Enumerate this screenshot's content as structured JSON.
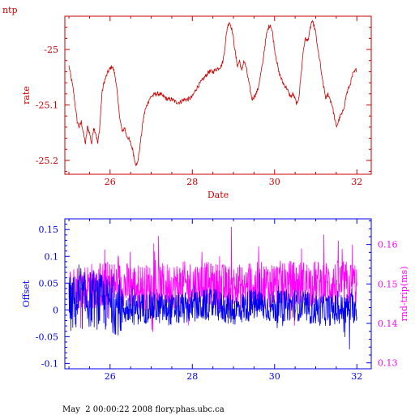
{
  "title": "ntp",
  "footer": "May  2 00:00:22 2008 flory.phas.ubc.ca",
  "colors": {
    "rate": "#cc0000",
    "offset": "#0000ee",
    "rtt": "#ff00ff",
    "text": "#000000"
  },
  "chart_data": [
    {
      "type": "line",
      "ylabel": "rate",
      "xlabel": "Date",
      "xlim": [
        24.9,
        32.35
      ],
      "ylim": [
        -25.225,
        -24.94
      ],
      "xticks": [
        26,
        28,
        30,
        32
      ],
      "yticks": [
        -25,
        -25.1,
        -25.2
      ],
      "ytick_labels": [
        "-25",
        "-25.1",
        "-25.2"
      ],
      "series": [
        {
          "keypoints": [
            [
              25.0,
              -25.03
            ],
            [
              25.05,
              -25.05
            ],
            [
              25.1,
              -25.07
            ],
            [
              25.15,
              -25.1
            ],
            [
              25.2,
              -25.13
            ],
            [
              25.25,
              -25.14
            ],
            [
              25.3,
              -25.13
            ],
            [
              25.35,
              -25.15
            ],
            [
              25.4,
              -25.17
            ],
            [
              25.45,
              -25.14
            ],
            [
              25.5,
              -25.15
            ],
            [
              25.55,
              -25.17
            ],
            [
              25.6,
              -25.14
            ],
            [
              25.65,
              -25.15
            ],
            [
              25.7,
              -25.17
            ],
            [
              25.75,
              -25.14
            ],
            [
              25.8,
              -25.08
            ],
            [
              25.85,
              -25.06
            ],
            [
              25.9,
              -25.05
            ],
            [
              25.95,
              -25.04
            ],
            [
              26.0,
              -25.035
            ],
            [
              26.05,
              -25.03
            ],
            [
              26.1,
              -25.04
            ],
            [
              26.15,
              -25.06
            ],
            [
              26.2,
              -25.1
            ],
            [
              26.25,
              -25.13
            ],
            [
              26.3,
              -25.15
            ],
            [
              26.35,
              -25.14
            ],
            [
              26.4,
              -25.155
            ],
            [
              26.45,
              -25.16
            ],
            [
              26.5,
              -25.17
            ],
            [
              26.55,
              -25.18
            ],
            [
              26.6,
              -25.2
            ],
            [
              26.65,
              -25.21
            ],
            [
              26.7,
              -25.19
            ],
            [
              26.75,
              -25.16
            ],
            [
              26.8,
              -25.13
            ],
            [
              26.85,
              -25.11
            ],
            [
              26.9,
              -25.1
            ],
            [
              26.95,
              -25.09
            ],
            [
              27.0,
              -25.085
            ],
            [
              27.1,
              -25.08
            ],
            [
              27.2,
              -25.08
            ],
            [
              27.3,
              -25.085
            ],
            [
              27.4,
              -25.09
            ],
            [
              27.5,
              -25.09
            ],
            [
              27.6,
              -25.095
            ],
            [
              27.7,
              -25.095
            ],
            [
              27.8,
              -25.09
            ],
            [
              27.9,
              -25.09
            ],
            [
              28.0,
              -25.085
            ],
            [
              28.1,
              -25.07
            ],
            [
              28.2,
              -25.06
            ],
            [
              28.3,
              -25.05
            ],
            [
              28.4,
              -25.04
            ],
            [
              28.5,
              -25.04
            ],
            [
              28.6,
              -25.035
            ],
            [
              28.7,
              -25.03
            ],
            [
              28.75,
              -25.02
            ],
            [
              28.8,
              -24.99
            ],
            [
              28.85,
              -24.96
            ],
            [
              28.9,
              -24.95
            ],
            [
              28.95,
              -24.96
            ],
            [
              29.0,
              -24.98
            ],
            [
              29.05,
              -25.01
            ],
            [
              29.1,
              -25.03
            ],
            [
              29.15,
              -25.02
            ],
            [
              29.2,
              -25.04
            ],
            [
              29.25,
              -25.02
            ],
            [
              29.3,
              -25.03
            ],
            [
              29.35,
              -25.05
            ],
            [
              29.4,
              -25.07
            ],
            [
              29.45,
              -25.09
            ],
            [
              29.5,
              -25.085
            ],
            [
              29.55,
              -25.08
            ],
            [
              29.6,
              -25.07
            ],
            [
              29.65,
              -25.05
            ],
            [
              29.7,
              -25.03
            ],
            [
              29.75,
              -25.0
            ],
            [
              29.8,
              -24.975
            ],
            [
              29.85,
              -24.96
            ],
            [
              29.9,
              -24.955
            ],
            [
              29.95,
              -24.97
            ],
            [
              30.0,
              -25.0
            ],
            [
              30.05,
              -25.02
            ],
            [
              30.1,
              -25.04
            ],
            [
              30.15,
              -25.05
            ],
            [
              30.2,
              -25.06
            ],
            [
              30.25,
              -25.065
            ],
            [
              30.3,
              -25.07
            ],
            [
              30.35,
              -25.08
            ],
            [
              30.4,
              -25.085
            ],
            [
              30.45,
              -25.08
            ],
            [
              30.5,
              -25.09
            ],
            [
              30.55,
              -25.1
            ],
            [
              30.6,
              -25.08
            ],
            [
              30.65,
              -25.04
            ],
            [
              30.7,
              -25.0
            ],
            [
              30.75,
              -24.98
            ],
            [
              30.8,
              -24.985
            ],
            [
              30.85,
              -24.97
            ],
            [
              30.9,
              -24.95
            ],
            [
              30.95,
              -24.955
            ],
            [
              31.0,
              -24.97
            ],
            [
              31.05,
              -25.0
            ],
            [
              31.1,
              -25.02
            ],
            [
              31.15,
              -25.05
            ],
            [
              31.2,
              -25.07
            ],
            [
              31.25,
              -25.09
            ],
            [
              31.3,
              -25.08
            ],
            [
              31.35,
              -25.09
            ],
            [
              31.4,
              -25.1
            ],
            [
              31.45,
              -25.12
            ],
            [
              31.5,
              -25.14
            ],
            [
              31.55,
              -25.13
            ],
            [
              31.6,
              -25.12
            ],
            [
              31.65,
              -25.115
            ],
            [
              31.7,
              -25.1
            ],
            [
              31.75,
              -25.08
            ],
            [
              31.8,
              -25.07
            ],
            [
              31.85,
              -25.06
            ],
            [
              31.9,
              -25.045
            ],
            [
              31.95,
              -25.04
            ],
            [
              32.0,
              -25.035
            ]
          ],
          "noise": 0.004
        }
      ]
    },
    {
      "type": "line",
      "ylabel": "Offset",
      "ylabel_right": "rnd-trip(ms)",
      "xlim": [
        24.9,
        32.35
      ],
      "ylim": [
        -0.11,
        0.17
      ],
      "ylim_right": [
        0.1285,
        0.1665
      ],
      "xticks": [
        26,
        28,
        30,
        32
      ],
      "yticks": [
        0.15,
        0.1,
        0.05,
        0,
        -0.05,
        -0.1
      ],
      "ytick_labels": [
        "0.15",
        "0.1",
        "0.05",
        "0",
        "-0.05",
        "-0.1"
      ],
      "yticks_right": [
        0.16,
        0.15,
        0.14,
        0.13
      ],
      "ytick_labels_right": [
        "0.16",
        "0.15",
        "0.14",
        "0.13"
      ],
      "series": [
        {
          "name": "Offset",
          "axis": "left",
          "keypoints": [
            [
              25.0,
              0.01
            ],
            [
              25.5,
              0.02
            ],
            [
              26.0,
              0.01
            ],
            [
              26.5,
              0.0
            ],
            [
              27.0,
              0.005
            ],
            [
              27.5,
              0.0
            ],
            [
              28.0,
              0.005
            ],
            [
              28.5,
              0.01
            ],
            [
              29.0,
              0.0
            ],
            [
              29.5,
              0.01
            ],
            [
              30.0,
              0.005
            ],
            [
              30.5,
              0.01
            ],
            [
              31.0,
              0.0
            ],
            [
              31.5,
              0.0
            ],
            [
              32.0,
              0.005
            ]
          ],
          "noise": 0.03
        },
        {
          "name": "rnd-trip(ms)",
          "axis": "right",
          "keypoints": [
            [
              25.0,
              0.149
            ],
            [
              26.0,
              0.15
            ],
            [
              27.0,
              0.149
            ],
            [
              28.0,
              0.15
            ],
            [
              29.0,
              0.149
            ],
            [
              30.0,
              0.15
            ],
            [
              31.0,
              0.15
            ],
            [
              32.0,
              0.15
            ]
          ],
          "noise": 0.006
        }
      ]
    }
  ]
}
